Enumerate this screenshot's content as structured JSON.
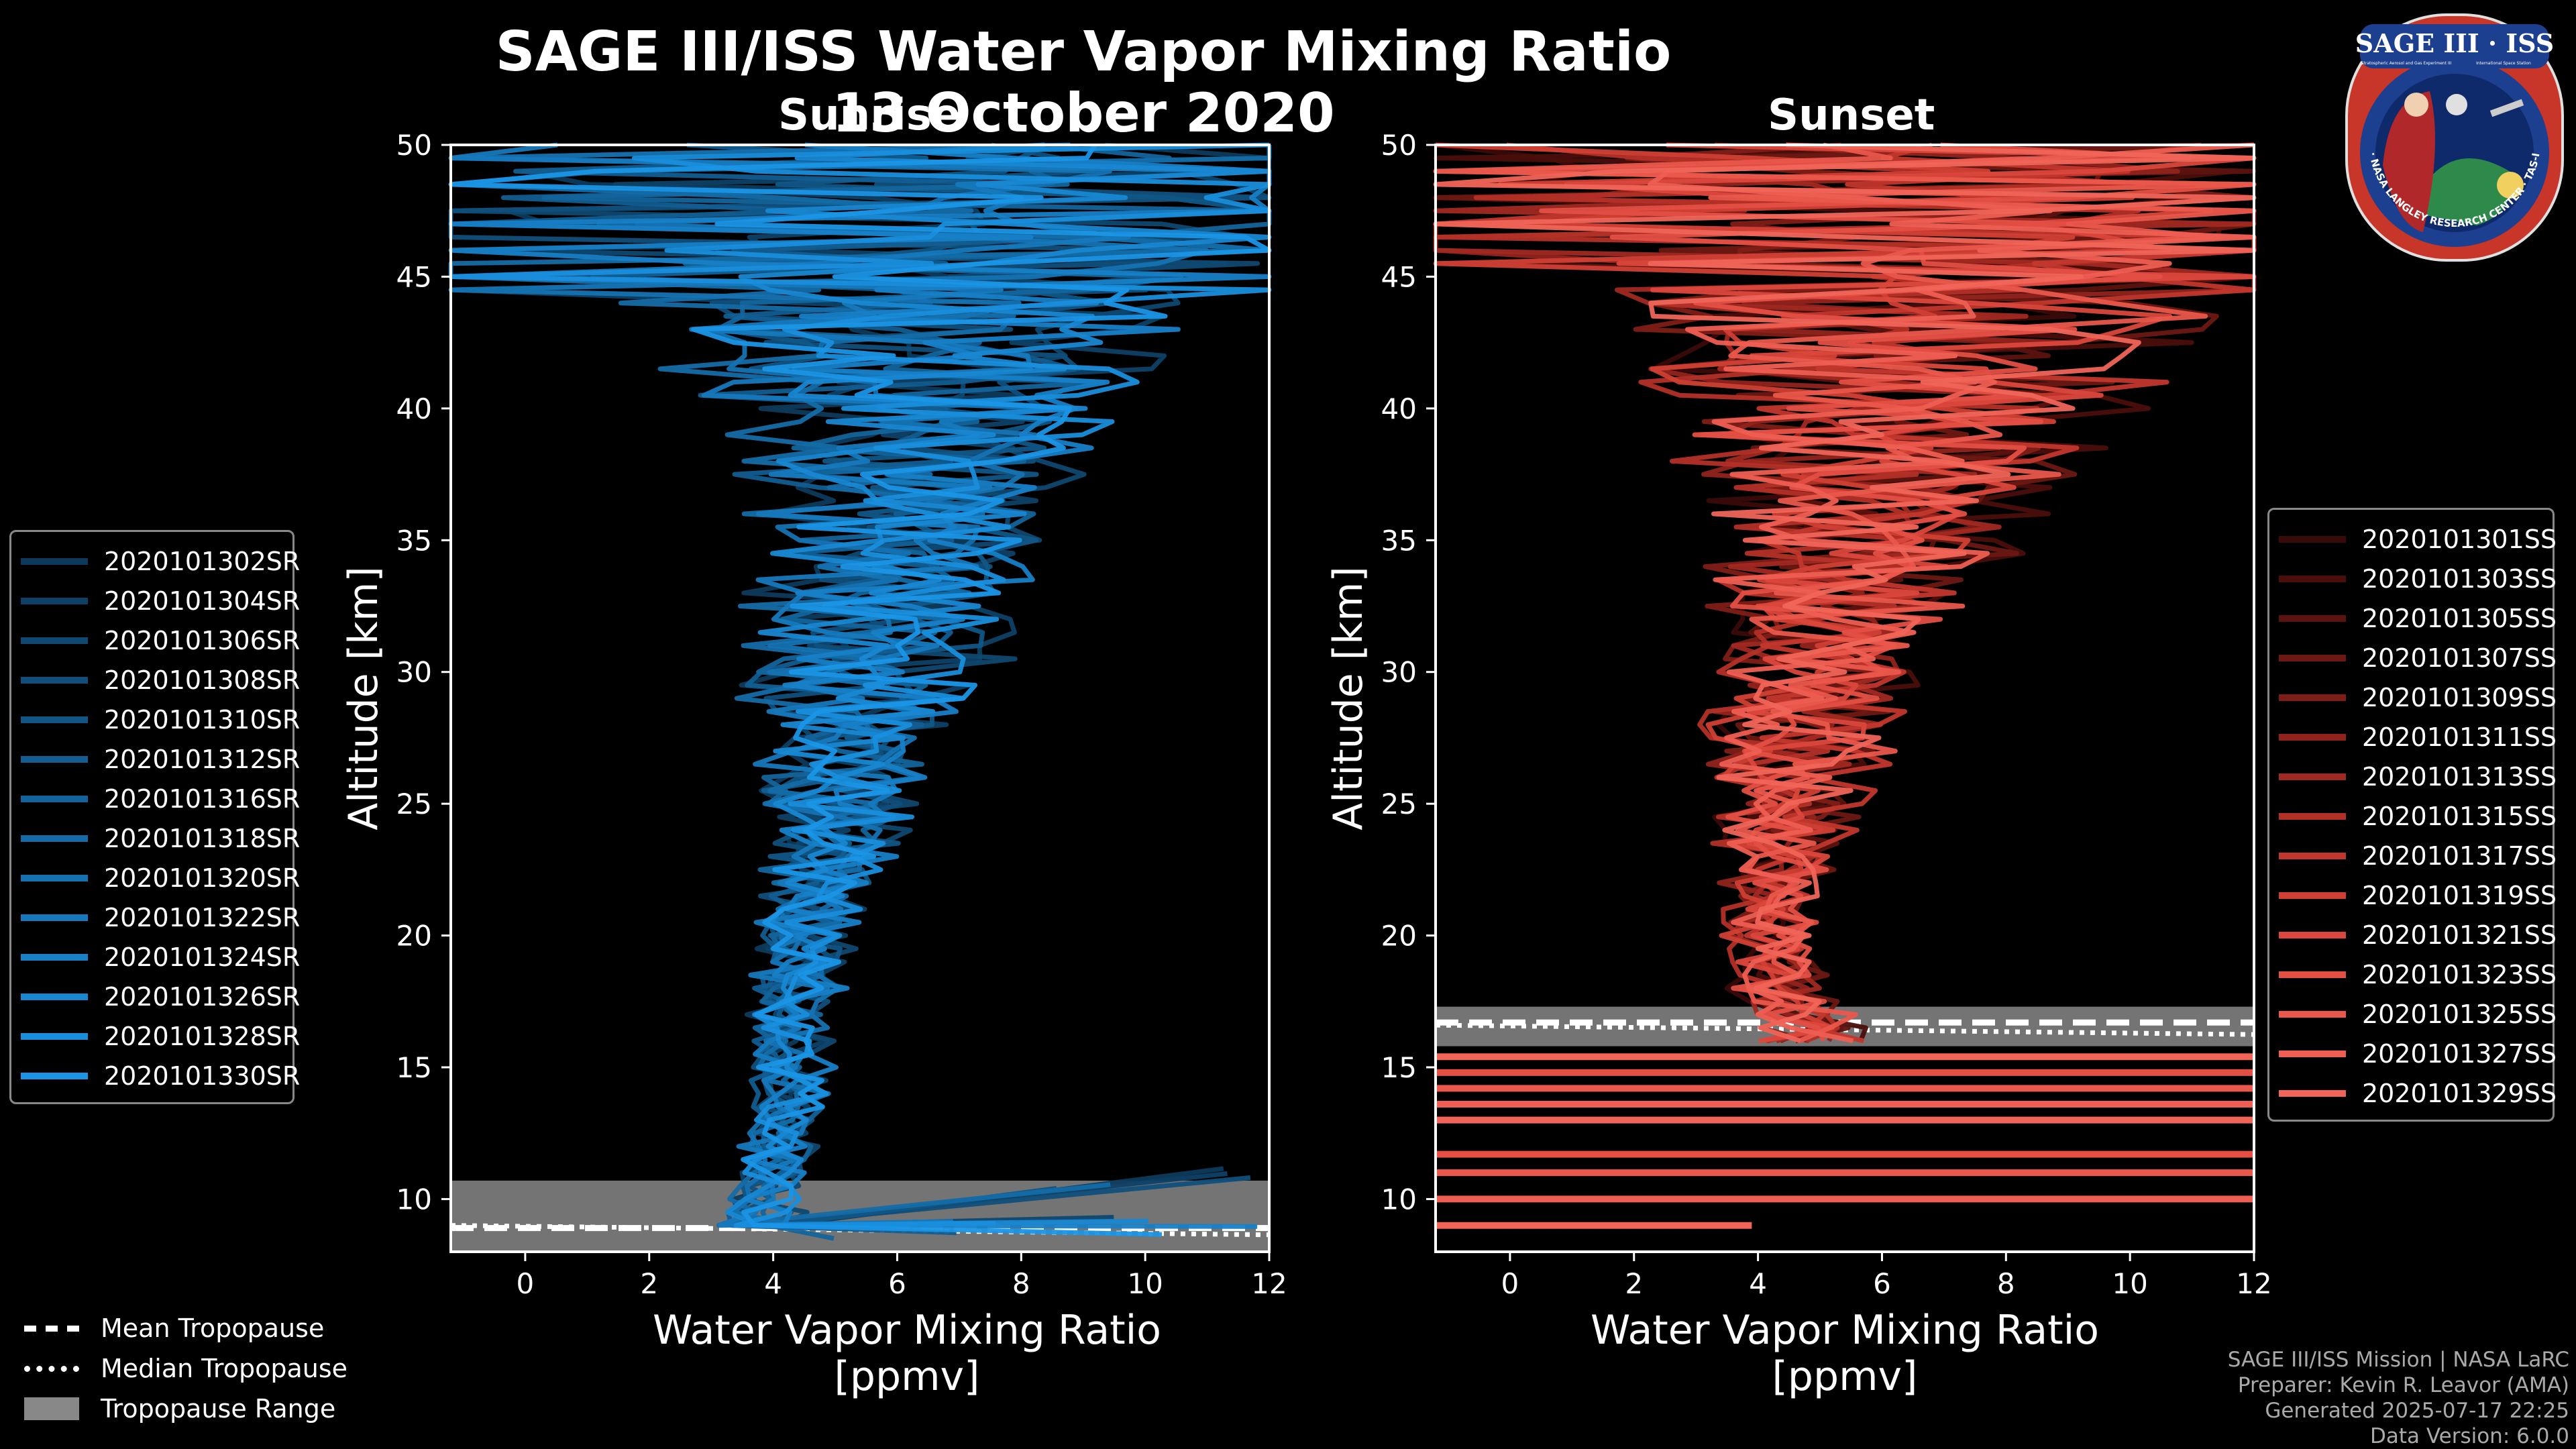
{
  "header": {
    "title": "SAGE III/ISS Water Vapor Mixing Ratio",
    "date": "13 October 2020",
    "subtitle_left": "Sunrise",
    "subtitle_right": "Sunset"
  },
  "chart_data": [
    {
      "type": "line",
      "panel": "Sunrise",
      "title": "Sunrise",
      "xlabel": "Water Vapor Mixing Ratio\n[ppmv]",
      "xlabel_line1": "Water Vapor Mixing Ratio",
      "xlabel_line2": "[ppmv]",
      "ylabel": "Altitude [km]",
      "xlim": [
        -1.2,
        12
      ],
      "ylim": [
        8,
        50
      ],
      "xticks": [
        0,
        2,
        4,
        6,
        8,
        10,
        12
      ],
      "yticks": [
        10,
        15,
        20,
        25,
        30,
        35,
        40,
        45,
        50
      ],
      "tropopause": {
        "mean": 8.9,
        "median": 9.0,
        "min": 8.0,
        "max": 10.7
      },
      "series": [
        {
          "name": "2020101302SR",
          "color": "#0d3a5c"
        },
        {
          "name": "2020101304SR",
          "color": "#0e4166"
        },
        {
          "name": "2020101306SR",
          "color": "#0f4870"
        },
        {
          "name": "2020101308SR",
          "color": "#104f7b"
        },
        {
          "name": "2020101310SR",
          "color": "#115686"
        },
        {
          "name": "2020101312SR",
          "color": "#125d91"
        },
        {
          "name": "2020101316SR",
          "color": "#13649c"
        },
        {
          "name": "2020101318SR",
          "color": "#146ba7"
        },
        {
          "name": "2020101320SR",
          "color": "#1572b2"
        },
        {
          "name": "2020101322SR",
          "color": "#1679bd"
        },
        {
          "name": "2020101324SR",
          "color": "#1780c7"
        },
        {
          "name": "2020101326SR",
          "color": "#1887d2"
        },
        {
          "name": "2020101328SR",
          "color": "#198edc"
        },
        {
          "name": "2020101330SR",
          "color": "#1a95e6"
        }
      ],
      "profile_envelope": {
        "altitude_km": [
          9,
          10,
          11,
          12,
          14,
          16,
          18,
          20,
          22,
          25,
          28,
          30,
          32,
          35,
          38,
          40,
          42,
          45,
          48,
          50
        ],
        "center_ppmv": [
          3.8,
          3.9,
          4.0,
          4.1,
          4.3,
          4.3,
          4.4,
          4.5,
          4.7,
          5.0,
          5.3,
          5.6,
          5.8,
          6.0,
          6.2,
          6.3,
          6.3,
          6.3,
          6.3,
          6.3
        ],
        "spread_ppmv": [
          0.6,
          0.6,
          0.6,
          0.6,
          0.6,
          0.6,
          0.7,
          0.7,
          0.9,
          1.2,
          1.5,
          1.8,
          1.9,
          2.1,
          2.5,
          3.0,
          3.5,
          4.5,
          6.0,
          6.5
        ]
      }
    },
    {
      "type": "line",
      "panel": "Sunset",
      "title": "Sunset",
      "xlabel": "Water Vapor Mixing Ratio\n[ppmv]",
      "xlabel_line1": "Water Vapor Mixing Ratio",
      "xlabel_line2": "[ppmv]",
      "ylabel": "Altitude [km]",
      "xlim": [
        -1.2,
        12
      ],
      "ylim": [
        8,
        50
      ],
      "xticks": [
        0,
        2,
        4,
        6,
        8,
        10,
        12
      ],
      "yticks": [
        10,
        15,
        20,
        25,
        30,
        35,
        40,
        45,
        50
      ],
      "tropopause": {
        "mean": 16.7,
        "median": 16.6,
        "min": 15.8,
        "max": 17.3
      },
      "series": [
        {
          "name": "2020101301SS",
          "color": "#3a0a08"
        },
        {
          "name": "2020101303SS",
          "color": "#4a0e0b"
        },
        {
          "name": "2020101305SS",
          "color": "#5c130f"
        },
        {
          "name": "2020101307SS",
          "color": "#6d1813"
        },
        {
          "name": "2020101309SS",
          "color": "#7f1d17"
        },
        {
          "name": "2020101311SS",
          "color": "#91231c"
        },
        {
          "name": "2020101313SS",
          "color": "#a22921"
        },
        {
          "name": "2020101315SS",
          "color": "#b33027"
        },
        {
          "name": "2020101317SS",
          "color": "#c2372d"
        },
        {
          "name": "2020101319SS",
          "color": "#d03f34"
        },
        {
          "name": "2020101321SS",
          "color": "#db473c"
        },
        {
          "name": "2020101323SS",
          "color": "#e44f44"
        },
        {
          "name": "2020101325SS",
          "color": "#ea574b"
        },
        {
          "name": "2020101327SS",
          "color": "#ee5e52"
        },
        {
          "name": "2020101329SS",
          "color": "#f06558"
        }
      ],
      "profile_envelope": {
        "altitude_km": [
          16,
          17,
          18,
          20,
          22,
          25,
          28,
          30,
          32,
          35,
          38,
          40,
          42,
          45,
          48,
          50
        ],
        "center_ppmv": [
          4.8,
          4.7,
          4.4,
          4.2,
          4.3,
          4.5,
          4.7,
          5.0,
          5.2,
          5.6,
          6.0,
          6.3,
          6.4,
          6.4,
          6.4,
          6.4
        ],
        "spread_ppmv": [
          0.8,
          0.8,
          0.8,
          0.7,
          0.8,
          1.1,
          1.4,
          1.6,
          1.9,
          2.3,
          2.8,
          3.2,
          3.8,
          4.8,
          6.0,
          6.5
        ]
      },
      "low_altitude_artifacts_km": [
        9.0,
        10.0,
        11.0,
        11.7,
        13.0,
        13.6,
        14.2,
        14.8,
        15.4
      ]
    }
  ],
  "tropopause_legend": {
    "mean": "Mean Tropopause",
    "median": "Median Tropopause",
    "range": "Tropopause Range"
  },
  "credits": {
    "line1": "SAGE III/ISS Mission | NASA LaRC",
    "line2": "Preparer: Kevin R. Leavor (AMA)",
    "line3": "Generated 2025-07-17 22:25",
    "line4": "Data Version: 6.0.0"
  },
  "logo": {
    "top_text": "SAGE III · ISS",
    "small_left": "Stratospheric Aerosol and Gas Experiment III",
    "small_right": "International Space Station",
    "ring_text": "BALL · NASA LANGLEY RESEARCH CENTER · TAS-I · ESA"
  },
  "colors": {
    "sunrise_accent": "#1a95e6",
    "sunset_accent": "#f06558",
    "background": "#000000",
    "tropopause_fill": "#888888"
  }
}
